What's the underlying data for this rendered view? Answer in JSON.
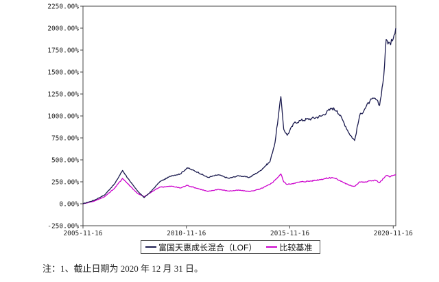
{
  "chart_data": {
    "type": "line",
    "title": "",
    "xlabel": "",
    "ylabel": "",
    "y_tick_labels": [
      "-250.00%",
      "0.00%",
      "250.00%",
      "500.00%",
      "750.00%",
      "1000.00%",
      "1250.00%",
      "1500.00%",
      "1750.00%",
      "2000.00%",
      "2250.00%"
    ],
    "y_ticks": [
      -250,
      0,
      250,
      500,
      750,
      1000,
      1250,
      1500,
      1750,
      2000,
      2250
    ],
    "ylim": [
      -250,
      2250
    ],
    "x_tick_labels": [
      "2005-11-16",
      "2010-11-16",
      "2015-11-16",
      "2020-11-16"
    ],
    "x_ticks": [
      "2005-11-16",
      "2010-11-16",
      "2015-11-16",
      "2020-11-16"
    ],
    "xlim": [
      "2005-11-16",
      "2020-12-31"
    ],
    "grid": false,
    "legend_position": "bottom",
    "series": [
      {
        "name": "富国天惠成长混合（LOF）",
        "color": "#1a1a4e",
        "x": [
          "2005-11-16",
          "2006-06-01",
          "2006-12-01",
          "2007-06-01",
          "2007-10-15",
          "2008-03-01",
          "2008-07-01",
          "2008-11-01",
          "2009-03-01",
          "2009-08-01",
          "2010-03-01",
          "2010-08-01",
          "2010-12-01",
          "2011-06-01",
          "2011-12-01",
          "2012-06-01",
          "2012-12-01",
          "2013-06-01",
          "2013-12-01",
          "2014-06-01",
          "2014-12-01",
          "2015-03-01",
          "2015-06-12",
          "2015-08-01",
          "2015-10-01",
          "2016-02-01",
          "2016-06-01",
          "2016-12-01",
          "2017-06-01",
          "2017-12-01",
          "2018-03-01",
          "2018-06-01",
          "2018-10-01",
          "2019-01-04",
          "2019-04-01",
          "2019-07-01",
          "2019-10-01",
          "2020-01-01",
          "2020-03-20",
          "2020-06-01",
          "2020-07-15",
          "2020-10-01",
          "2020-12-31"
        ],
        "y": [
          0,
          40,
          100,
          230,
          380,
          250,
          150,
          70,
          140,
          250,
          320,
          340,
          410,
          360,
          300,
          330,
          290,
          320,
          300,
          370,
          480,
          700,
          1220,
          850,
          780,
          920,
          950,
          970,
          1000,
          1090,
          1060,
          960,
          800,
          720,
          1000,
          1080,
          1170,
          1200,
          1120,
          1450,
          1870,
          1810,
          2000
        ]
      },
      {
        "name": "比较基准",
        "color": "#cc00cc",
        "x": [
          "2005-11-16",
          "2006-06-01",
          "2006-12-01",
          "2007-06-01",
          "2007-10-15",
          "2008-03-01",
          "2008-07-01",
          "2008-11-01",
          "2009-03-01",
          "2009-08-01",
          "2010-03-01",
          "2010-08-01",
          "2010-12-01",
          "2011-06-01",
          "2011-12-01",
          "2012-06-01",
          "2012-12-01",
          "2013-06-01",
          "2013-12-01",
          "2014-06-01",
          "2014-12-01",
          "2015-03-01",
          "2015-06-12",
          "2015-08-01",
          "2015-10-01",
          "2016-02-01",
          "2016-06-01",
          "2016-12-01",
          "2017-06-01",
          "2017-12-01",
          "2018-03-01",
          "2018-06-01",
          "2018-10-01",
          "2019-01-04",
          "2019-04-01",
          "2019-07-01",
          "2019-10-01",
          "2020-01-01",
          "2020-03-20",
          "2020-06-01",
          "2020-07-15",
          "2020-10-01",
          "2020-12-31"
        ],
        "y": [
          0,
          30,
          80,
          180,
          290,
          200,
          120,
          80,
          130,
          190,
          200,
          180,
          210,
          175,
          140,
          165,
          145,
          155,
          140,
          165,
          220,
          270,
          340,
          250,
          220,
          235,
          250,
          260,
          280,
          300,
          280,
          250,
          210,
          200,
          250,
          245,
          260,
          270,
          240,
          290,
          320,
          310,
          330
        ]
      }
    ]
  },
  "note": "注：1、截止日期为 2020 年 12 月 31 日。"
}
